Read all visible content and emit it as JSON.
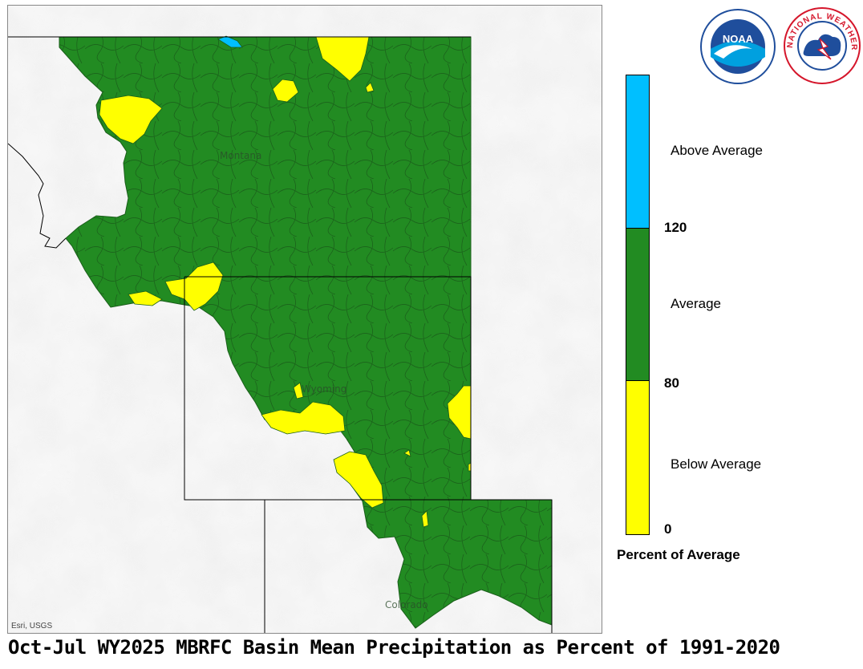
{
  "map": {
    "states": [
      "Montana",
      "Wyoming",
      "Colorado"
    ],
    "attribution": "Esri, USGS"
  },
  "legend": {
    "title": "Percent of Average",
    "categories": [
      {
        "label": "Above Average",
        "color": "#00bfff",
        "min": 120
      },
      {
        "label": "Average",
        "color": "#228b22",
        "min": 80,
        "max": 120
      },
      {
        "label": "Below Average",
        "color": "#ffff00",
        "min": 0,
        "max": 80
      }
    ],
    "ticks": [
      "120",
      "80",
      "0"
    ]
  },
  "logos": {
    "noaa": {
      "text": "NOAA",
      "colors": [
        "#1f4e9c",
        "#00a0df"
      ]
    },
    "nws": {
      "text": "NATIONAL WEATHER SERVICE",
      "colors": [
        "#d5162b",
        "#1f4e9c"
      ]
    }
  },
  "caption": "Oct-Jul WY2025 MBRFC Basin Mean Precipitation as Percent of 1991-2020"
}
